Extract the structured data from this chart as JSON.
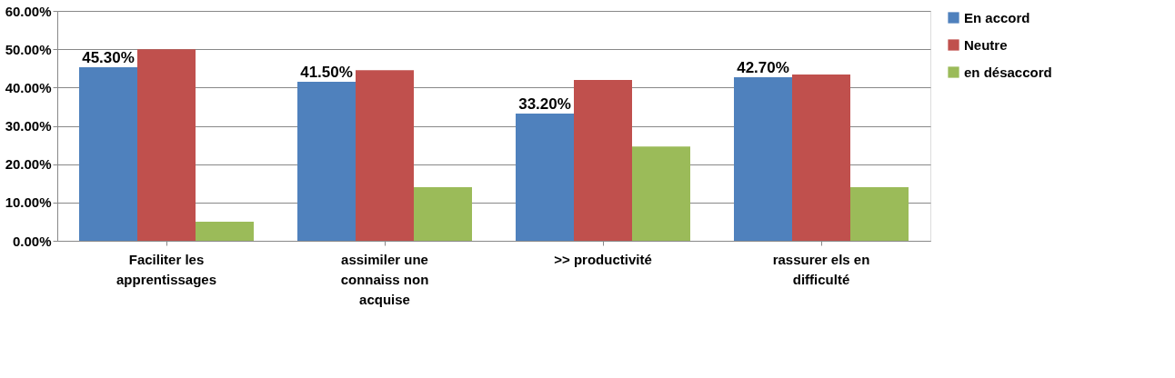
{
  "chart_data": {
    "type": "bar",
    "categories": [
      "Faciliter les apprentissages",
      "assimiler une connaiss non acquise",
      ">> productivité",
      "rassurer els en difficulté"
    ],
    "series": [
      {
        "name": "En accord",
        "color": "#4f81bd",
        "values": [
          45.3,
          41.5,
          33.2,
          42.7
        ],
        "value_labels": [
          "45.30%",
          "41.50%",
          "33.20%",
          "42.70%"
        ]
      },
      {
        "name": "Neutre",
        "color": "#c0504d",
        "values": [
          50.0,
          44.5,
          42.0,
          43.4
        ]
      },
      {
        "name": "en désaccord",
        "color": "#9bbb59",
        "values": [
          5.0,
          14.0,
          24.6,
          14.0
        ]
      }
    ],
    "ylim": [
      0,
      60
    ],
    "yticks": [
      {
        "value": 0,
        "label": "0.00%"
      },
      {
        "value": 10,
        "label": "10.00%"
      },
      {
        "value": 20,
        "label": "20.00%"
      },
      {
        "value": 30,
        "label": "30.00%"
      },
      {
        "value": 40,
        "label": "40.00%"
      },
      {
        "value": 50,
        "label": "50.00%"
      },
      {
        "value": 60,
        "label": "60.00%"
      }
    ],
    "grid": "y",
    "legend": "right"
  }
}
